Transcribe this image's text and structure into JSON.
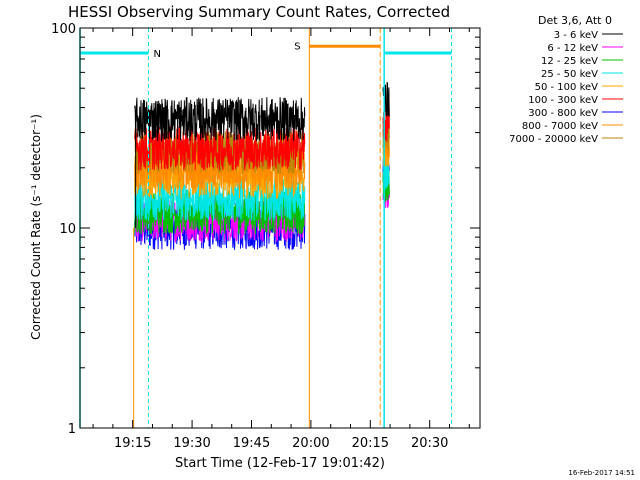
{
  "chart_data": {
    "type": "line",
    "title": "HESSI Observing Summary Count Rates, Corrected",
    "xlabel": "Start Time (12-Feb-17 19:01:42)",
    "ylabel": "Corrected Count Rate (s⁻¹ detector⁻¹)",
    "yscale": "log",
    "ylim": [
      1,
      100
    ],
    "xlim_minutes_of_day": [
      1141.7,
      1242.7
    ],
    "x_ticks": [
      {
        "label": "19:15",
        "minutes": 1155
      },
      {
        "label": "19:30",
        "minutes": 1170
      },
      {
        "label": "19:45",
        "minutes": 1185
      },
      {
        "label": "20:00",
        "minutes": 1200
      },
      {
        "label": "20:15",
        "minutes": 1215
      },
      {
        "label": "20:30",
        "minutes": 1230
      }
    ],
    "y_ticks": [
      {
        "label": "1",
        "value": 1
      },
      {
        "label": "10",
        "value": 10
      },
      {
        "label": "100",
        "value": 100
      }
    ],
    "legend_title": "Det 3,6, Att 0",
    "legend_position": "right",
    "series": [
      {
        "name": "3 - 6 keV",
        "color": "#000000",
        "level": 35,
        "level2": 44
      },
      {
        "name": "6 - 12 keV",
        "color": "#ff00ff",
        "level": 11,
        "level2": 15
      },
      {
        "name": "12 - 25 keV",
        "color": "#00c000",
        "level": 12,
        "level2": 16
      },
      {
        "name": "25 - 50 keV",
        "color": "#00e5e5",
        "level": 14,
        "level2": 19
      },
      {
        "name": "50 - 100 keV",
        "color": "#ffa500",
        "level": 18,
        "level2": 25
      },
      {
        "name": "100 - 300 keV",
        "color": "#ff0000",
        "level": 25,
        "level2": 33
      },
      {
        "name": "300 - 800 keV",
        "color": "#0000ff",
        "level": 10,
        "level2": 20
      },
      {
        "name": "800 - 7000 keV",
        "color": "#ff8c00",
        "level": 20,
        "level2": 27
      },
      {
        "name": "7000 - 20000 keV",
        "color": "#b8860b",
        "level": 24,
        "level2": 30
      }
    ],
    "data_interval_1_minutes": [
      1155.5,
      1198.5
    ],
    "data_interval_2_minutes": [
      1218.2,
      1219.8
    ],
    "night_bars": [
      {
        "label": "N",
        "start": 1141.7,
        "end": 1159.0,
        "color": "#00e5e5"
      },
      {
        "label": "",
        "start": 1218.5,
        "end": 1235.5,
        "color": "#00e5e5"
      }
    ],
    "saa_bars": [
      {
        "label": "S",
        "start": 1199.6,
        "end": 1217.5,
        "color": "#ff8c00"
      }
    ]
  },
  "footer": {
    "timestamp": "16-Feb-2017 14:51"
  }
}
